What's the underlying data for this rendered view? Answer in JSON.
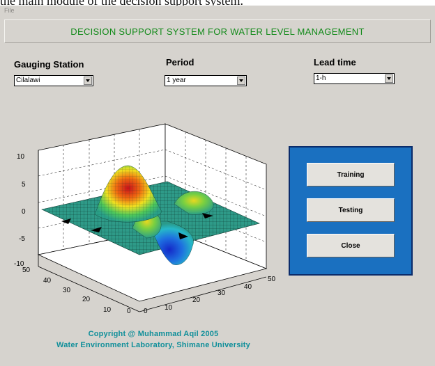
{
  "caption": "the main module of the decision support system.",
  "menu": {
    "file": "File"
  },
  "banner": {
    "title": "DECISION SUPPORT SYSTEM FOR WATER LEVEL MANAGEMENT"
  },
  "controls": {
    "station_label": "Gauging Station",
    "station_value": "Cilalawi",
    "period_label": "Period",
    "period_value": "1 year",
    "lead_label": "Lead time",
    "lead_value": "1-h"
  },
  "plot": {
    "z_ticks": [
      "10",
      "5",
      "0",
      "-5",
      "-10"
    ],
    "y_ticks": [
      "50",
      "40",
      "30",
      "20",
      "10",
      "0"
    ],
    "x_ticks": [
      "0",
      "10",
      "20",
      "30",
      "40",
      "50"
    ]
  },
  "buttons": {
    "training": "Training",
    "testing": "Testing",
    "close": "Close"
  },
  "copyright": {
    "line1": "Copyright @ Muhammad Aqil 2005",
    "line2": "Water Environment Laboratory, Shimane University"
  },
  "colors": {
    "banner_text": "#138a1a",
    "panel": "#1a70c0",
    "copyright": "#108f9a"
  }
}
